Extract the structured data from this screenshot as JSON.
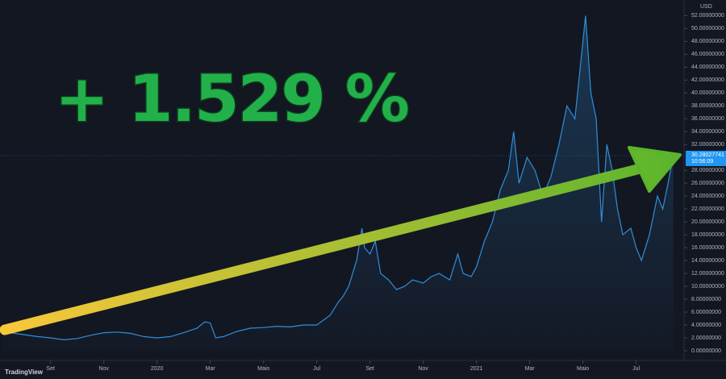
{
  "chart_data": {
    "type": "line",
    "headline": "+ 1.529 %",
    "currency": "USD",
    "last_price": {
      "value": 30.28027741,
      "label": "30.28027741"
    },
    "countdown": "10:56:09",
    "brand": "TradingView",
    "color": "#2f8ed8",
    "arrow_colors": [
      "#f9c83a",
      "#5bb52c"
    ],
    "grid": false,
    "xlim": [
      -1.9,
      23.8
    ],
    "xticks": [
      {
        "value": 0,
        "label": "Set"
      },
      {
        "value": 2,
        "label": "Nov"
      },
      {
        "value": 4,
        "label": "2020"
      },
      {
        "value": 6,
        "label": "Mar"
      },
      {
        "value": 8,
        "label": "Maio"
      },
      {
        "value": 10,
        "label": "Jul"
      },
      {
        "value": 12,
        "label": "Set"
      },
      {
        "value": 14,
        "label": "Nov"
      },
      {
        "value": 16,
        "label": "2021"
      },
      {
        "value": 18,
        "label": "Mar"
      },
      {
        "value": 20,
        "label": "Maio"
      },
      {
        "value": 22,
        "label": "Jul"
      }
    ],
    "ylim": [
      0,
      52.3
    ],
    "yticks": [
      {
        "value": 0,
        "label": "0.00000000"
      },
      {
        "value": 2,
        "label": "2.00000000"
      },
      {
        "value": 4,
        "label": "4.00000000"
      },
      {
        "value": 6,
        "label": "6.00000000"
      },
      {
        "value": 8,
        "label": "8.00000000"
      },
      {
        "value": 10,
        "label": "10.00000000"
      },
      {
        "value": 12,
        "label": "12.00000000"
      },
      {
        "value": 14,
        "label": "14.00000000"
      },
      {
        "value": 16,
        "label": "16.00000000"
      },
      {
        "value": 18,
        "label": "18.00000000"
      },
      {
        "value": 20,
        "label": "20.00000000"
      },
      {
        "value": 22,
        "label": "22.00000000"
      },
      {
        "value": 24,
        "label": "24.00000000"
      },
      {
        "value": 26,
        "label": "26.00000000"
      },
      {
        "value": 28,
        "label": "28.00000000"
      },
      {
        "value": 32,
        "label": "32.00000000"
      },
      {
        "value": 34,
        "label": "34.00000000"
      },
      {
        "value": 36,
        "label": "36.00000000"
      },
      {
        "value": 38,
        "label": "38.00000000"
      },
      {
        "value": 40,
        "label": "40.00000000"
      },
      {
        "value": 42,
        "label": "42.00000000"
      },
      {
        "value": 44,
        "label": "44.00000000"
      },
      {
        "value": 46,
        "label": "46.00000000"
      },
      {
        "value": 48,
        "label": "48.00000000"
      },
      {
        "value": 50,
        "label": "50.00000000"
      },
      {
        "value": 52,
        "label": "52.00000000"
      }
    ],
    "x": [
      -1.8,
      -1.5,
      -1.0,
      -0.5,
      0,
      0.5,
      1.0,
      1.5,
      2.0,
      2.5,
      3.0,
      3.5,
      4.0,
      4.5,
      5.0,
      5.5,
      5.8,
      6.0,
      6.2,
      6.5,
      7.0,
      7.5,
      8.0,
      8.5,
      9.0,
      9.5,
      10.0,
      10.5,
      10.8,
      11.0,
      11.2,
      11.5,
      11.7,
      11.8,
      12.0,
      12.2,
      12.4,
      12.7,
      13.0,
      13.3,
      13.6,
      14.0,
      14.3,
      14.6,
      15.0,
      15.3,
      15.5,
      15.8,
      16.0,
      16.3,
      16.6,
      16.9,
      17.2,
      17.4,
      17.6,
      17.9,
      18.2,
      18.5,
      18.8,
      19.1,
      19.4,
      19.7,
      20.0,
      20.1,
      20.3,
      20.5,
      20.7,
      20.9,
      21.1,
      21.3,
      21.5,
      21.8,
      22.0,
      22.2,
      22.5,
      22.8,
      23.0,
      23.2,
      23.4
    ],
    "values": [
      3.0,
      2.8,
      2.5,
      2.2,
      2.0,
      1.7,
      1.9,
      2.4,
      2.8,
      2.9,
      2.7,
      2.2,
      2.0,
      2.2,
      2.8,
      3.5,
      4.5,
      4.3,
      2.0,
      2.2,
      3.0,
      3.5,
      3.6,
      3.8,
      3.7,
      4.0,
      4.0,
      5.5,
      7.5,
      8.5,
      10,
      14,
      19,
      16,
      15,
      17,
      12,
      11,
      9.5,
      10,
      11,
      10.5,
      11.5,
      12,
      11,
      15,
      12,
      11.5,
      13,
      17,
      20,
      25,
      28,
      34,
      26,
      30,
      28,
      24,
      27,
      32,
      38,
      36,
      48,
      52,
      40,
      36,
      20,
      32,
      28,
      22,
      18,
      19,
      16,
      14,
      18,
      24,
      22,
      26,
      30.28
    ]
  }
}
